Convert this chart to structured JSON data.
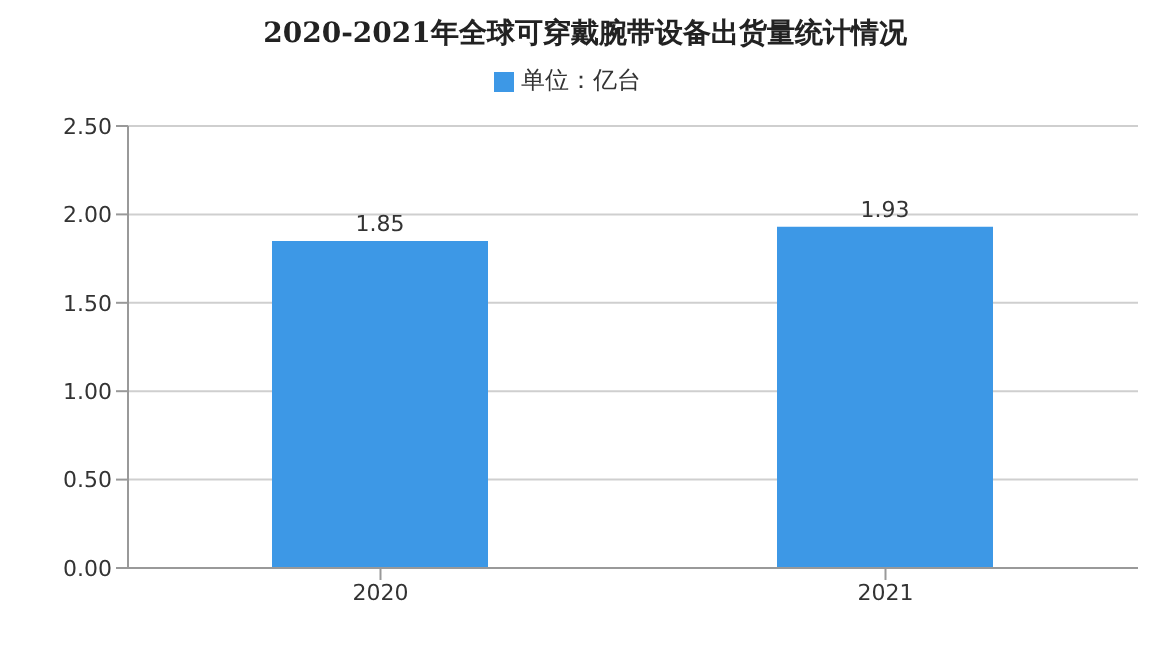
{
  "chart_data": {
    "type": "bar",
    "title": "2020-2021年全球可穿戴腕带设备出货量统计情况",
    "categories": [
      "2020",
      "2021"
    ],
    "series": [
      {
        "name": "单位：亿台",
        "color": "#3d98e6",
        "values": [
          1.85,
          1.93
        ]
      }
    ],
    "ylim": [
      0,
      2.5
    ],
    "yticks": [
      "0.00",
      "0.50",
      "1.00",
      "1.50",
      "2.00",
      "2.50"
    ],
    "grid": "y",
    "legend": "top",
    "data_labels": true
  }
}
